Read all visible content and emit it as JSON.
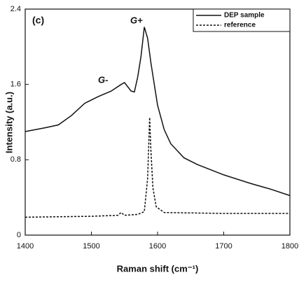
{
  "chart_data": {
    "type": "line",
    "xlabel": "Raman shift (cm⁻¹)",
    "ylabel": "Intensity (a.u.)",
    "panel_label": "(c)",
    "annotations": [
      "G+",
      "G-"
    ],
    "xlim": [
      1400,
      1800
    ],
    "xticks": [
      1400,
      1500,
      1600,
      1700,
      1800
    ],
    "ylim": [
      0,
      2.4
    ],
    "yticks": [
      0,
      0.8,
      1.6,
      2.4
    ],
    "legend": "upper right",
    "series": [
      {
        "name": "DEP sample",
        "color": "#111111",
        "dash": "solid",
        "x": [
          1400,
          1430,
          1450,
          1470,
          1490,
          1510,
          1530,
          1545,
          1550,
          1560,
          1565,
          1570,
          1575,
          1580,
          1585,
          1590,
          1600,
          1610,
          1620,
          1640,
          1660,
          1700,
          1740,
          1770,
          1800
        ],
        "values": [
          1.1,
          1.14,
          1.17,
          1.27,
          1.4,
          1.47,
          1.53,
          1.6,
          1.62,
          1.53,
          1.52,
          1.68,
          1.9,
          2.21,
          2.09,
          1.83,
          1.38,
          1.12,
          0.97,
          0.82,
          0.75,
          0.64,
          0.55,
          0.49,
          0.42
        ]
      },
      {
        "name": "reference",
        "color": "#111111",
        "dash": "dashed",
        "x": [
          1400,
          1500,
          1540,
          1545,
          1550,
          1570,
          1580,
          1585,
          1588,
          1590,
          1593,
          1598,
          1610,
          1700,
          1800
        ],
        "values": [
          0.19,
          0.2,
          0.21,
          0.24,
          0.21,
          0.22,
          0.25,
          0.6,
          1.25,
          0.9,
          0.5,
          0.3,
          0.24,
          0.23,
          0.23
        ]
      }
    ]
  }
}
